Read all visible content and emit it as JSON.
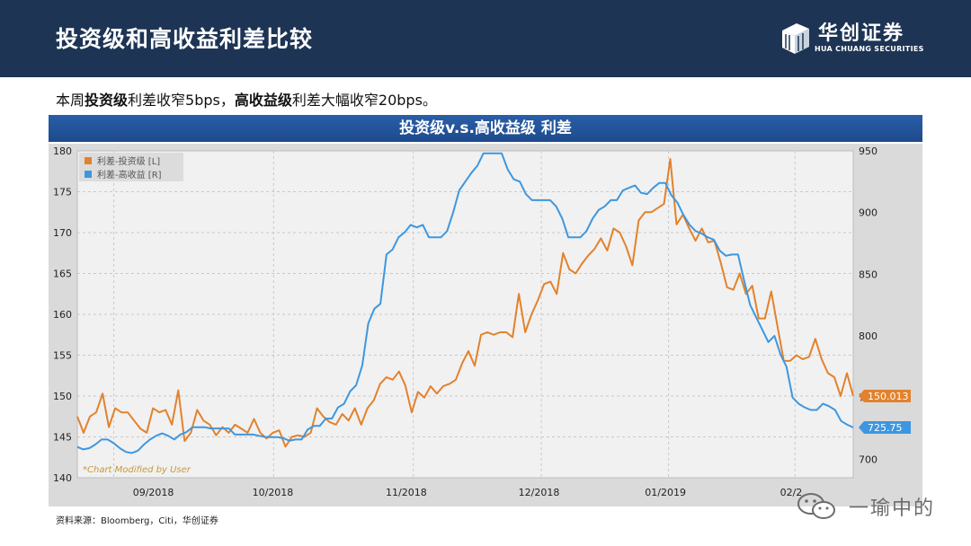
{
  "header": {
    "title": "投资级和高收益利差比较",
    "logo_name": "华创证券",
    "logo_en": "HUA CHUANG SECURITIES"
  },
  "summary": {
    "p1": "本周",
    "b1": "投资级",
    "p2": "利差收窄5bps，",
    "b2": "高收益级",
    "p3": "利差大幅收窄20bps。"
  },
  "chart_banner": "投资级v.s.高收益级 利差",
  "source": "资料来源：Bloomberg，Citi，华创证券",
  "watermark": "一瑜中的",
  "colors": {
    "ig": "#e2822c",
    "hy": "#3d97e0",
    "banner": "#2a5ea8",
    "header": "#1d3454"
  },
  "chart_data": {
    "type": "line",
    "title": "投资级v.s.高收益级 利差",
    "x_ticks": [
      "09/2018",
      "10/2018",
      "11/2018",
      "12/2018",
      "01/2019",
      "02/2"
    ],
    "left_axis": {
      "ylim": [
        140,
        180
      ],
      "ticks": [
        "140",
        "145",
        "150",
        "155",
        "160",
        "165",
        "170",
        "175",
        "180"
      ]
    },
    "right_axis": {
      "ylim": [
        685,
        950
      ],
      "ticks": [
        "700",
        "750",
        "800",
        "850",
        "900",
        "950"
      ]
    },
    "grid": true,
    "legend_position": "top-left",
    "watermark_note": "*Chart Modified by User",
    "series": [
      {
        "name": "利差-投资级 [L]",
        "axis": "left",
        "last_value_label": "150.013",
        "values": [
          147.5,
          145.5,
          147.5,
          148,
          150.3,
          146.2,
          148.5,
          148,
          148,
          147,
          146,
          145.5,
          148.5,
          148,
          148.3,
          146.5,
          150.7,
          144.5,
          145.5,
          148.3,
          147,
          146.5,
          145.2,
          146.2,
          145.5,
          146.5,
          146,
          145.5,
          147.2,
          145.5,
          144.8,
          145.5,
          145.8,
          143.8,
          145,
          145.2,
          145,
          145.5,
          148.5,
          147.5,
          146.8,
          146.5,
          147.8,
          147,
          148.5,
          146.5,
          148.5,
          149.5,
          151.5,
          152.3,
          152,
          153,
          151.3,
          148,
          150.5,
          149.8,
          151.2,
          150.3,
          151.2,
          151.5,
          152,
          154,
          155.5,
          153.7,
          157.5,
          157.8,
          157.5,
          157.8,
          157.8,
          157.2,
          162.5,
          157.8,
          160,
          161.7,
          163.7,
          164,
          162.5,
          167.5,
          165.5,
          165,
          166.2,
          167.2,
          168,
          169.3,
          167.8,
          170.5,
          170,
          168.3,
          166,
          171.5,
          172.5,
          172.5,
          173,
          173.5,
          179,
          171,
          172.2,
          170.5,
          169,
          170.5,
          168.8,
          169,
          166.3,
          163.3,
          163,
          165,
          162.5,
          163.5,
          159.5,
          159.5,
          162.8,
          158.5,
          154.3,
          154.3,
          155,
          154.5,
          154.8,
          157,
          154.5,
          152.8,
          152.3,
          150,
          152.8,
          150
        ]
      },
      {
        "name": "利差-高收益 [R]",
        "axis": "right",
        "last_value_label": "725.75",
        "values": [
          710,
          708,
          709,
          712,
          716,
          716,
          713,
          709,
          706,
          705,
          707,
          712,
          716,
          719,
          721,
          719,
          716,
          720,
          722,
          726,
          726,
          726,
          725,
          725,
          725,
          725,
          720,
          720,
          720,
          720,
          719,
          718,
          718,
          718,
          717,
          715,
          716,
          716,
          724,
          727,
          727,
          733,
          733,
          742,
          745,
          755,
          760,
          776,
          810,
          822,
          826,
          866,
          870,
          880,
          884,
          890,
          888,
          890,
          880,
          880,
          880,
          885,
          900,
          918,
          925,
          932,
          938,
          948,
          948,
          948,
          948,
          935,
          927,
          925,
          915,
          910,
          910,
          910,
          910,
          905,
          895,
          880,
          880,
          880,
          885,
          895,
          902,
          905,
          910,
          910,
          918,
          920,
          922,
          916,
          915,
          920,
          924,
          924,
          914,
          908,
          898,
          890,
          885,
          883,
          880,
          878,
          869,
          865,
          866,
          866,
          845,
          825,
          815,
          805,
          795,
          800,
          785,
          775,
          750,
          745,
          742,
          740,
          740,
          745,
          743,
          740,
          731,
          728,
          725.75
        ]
      }
    ]
  }
}
